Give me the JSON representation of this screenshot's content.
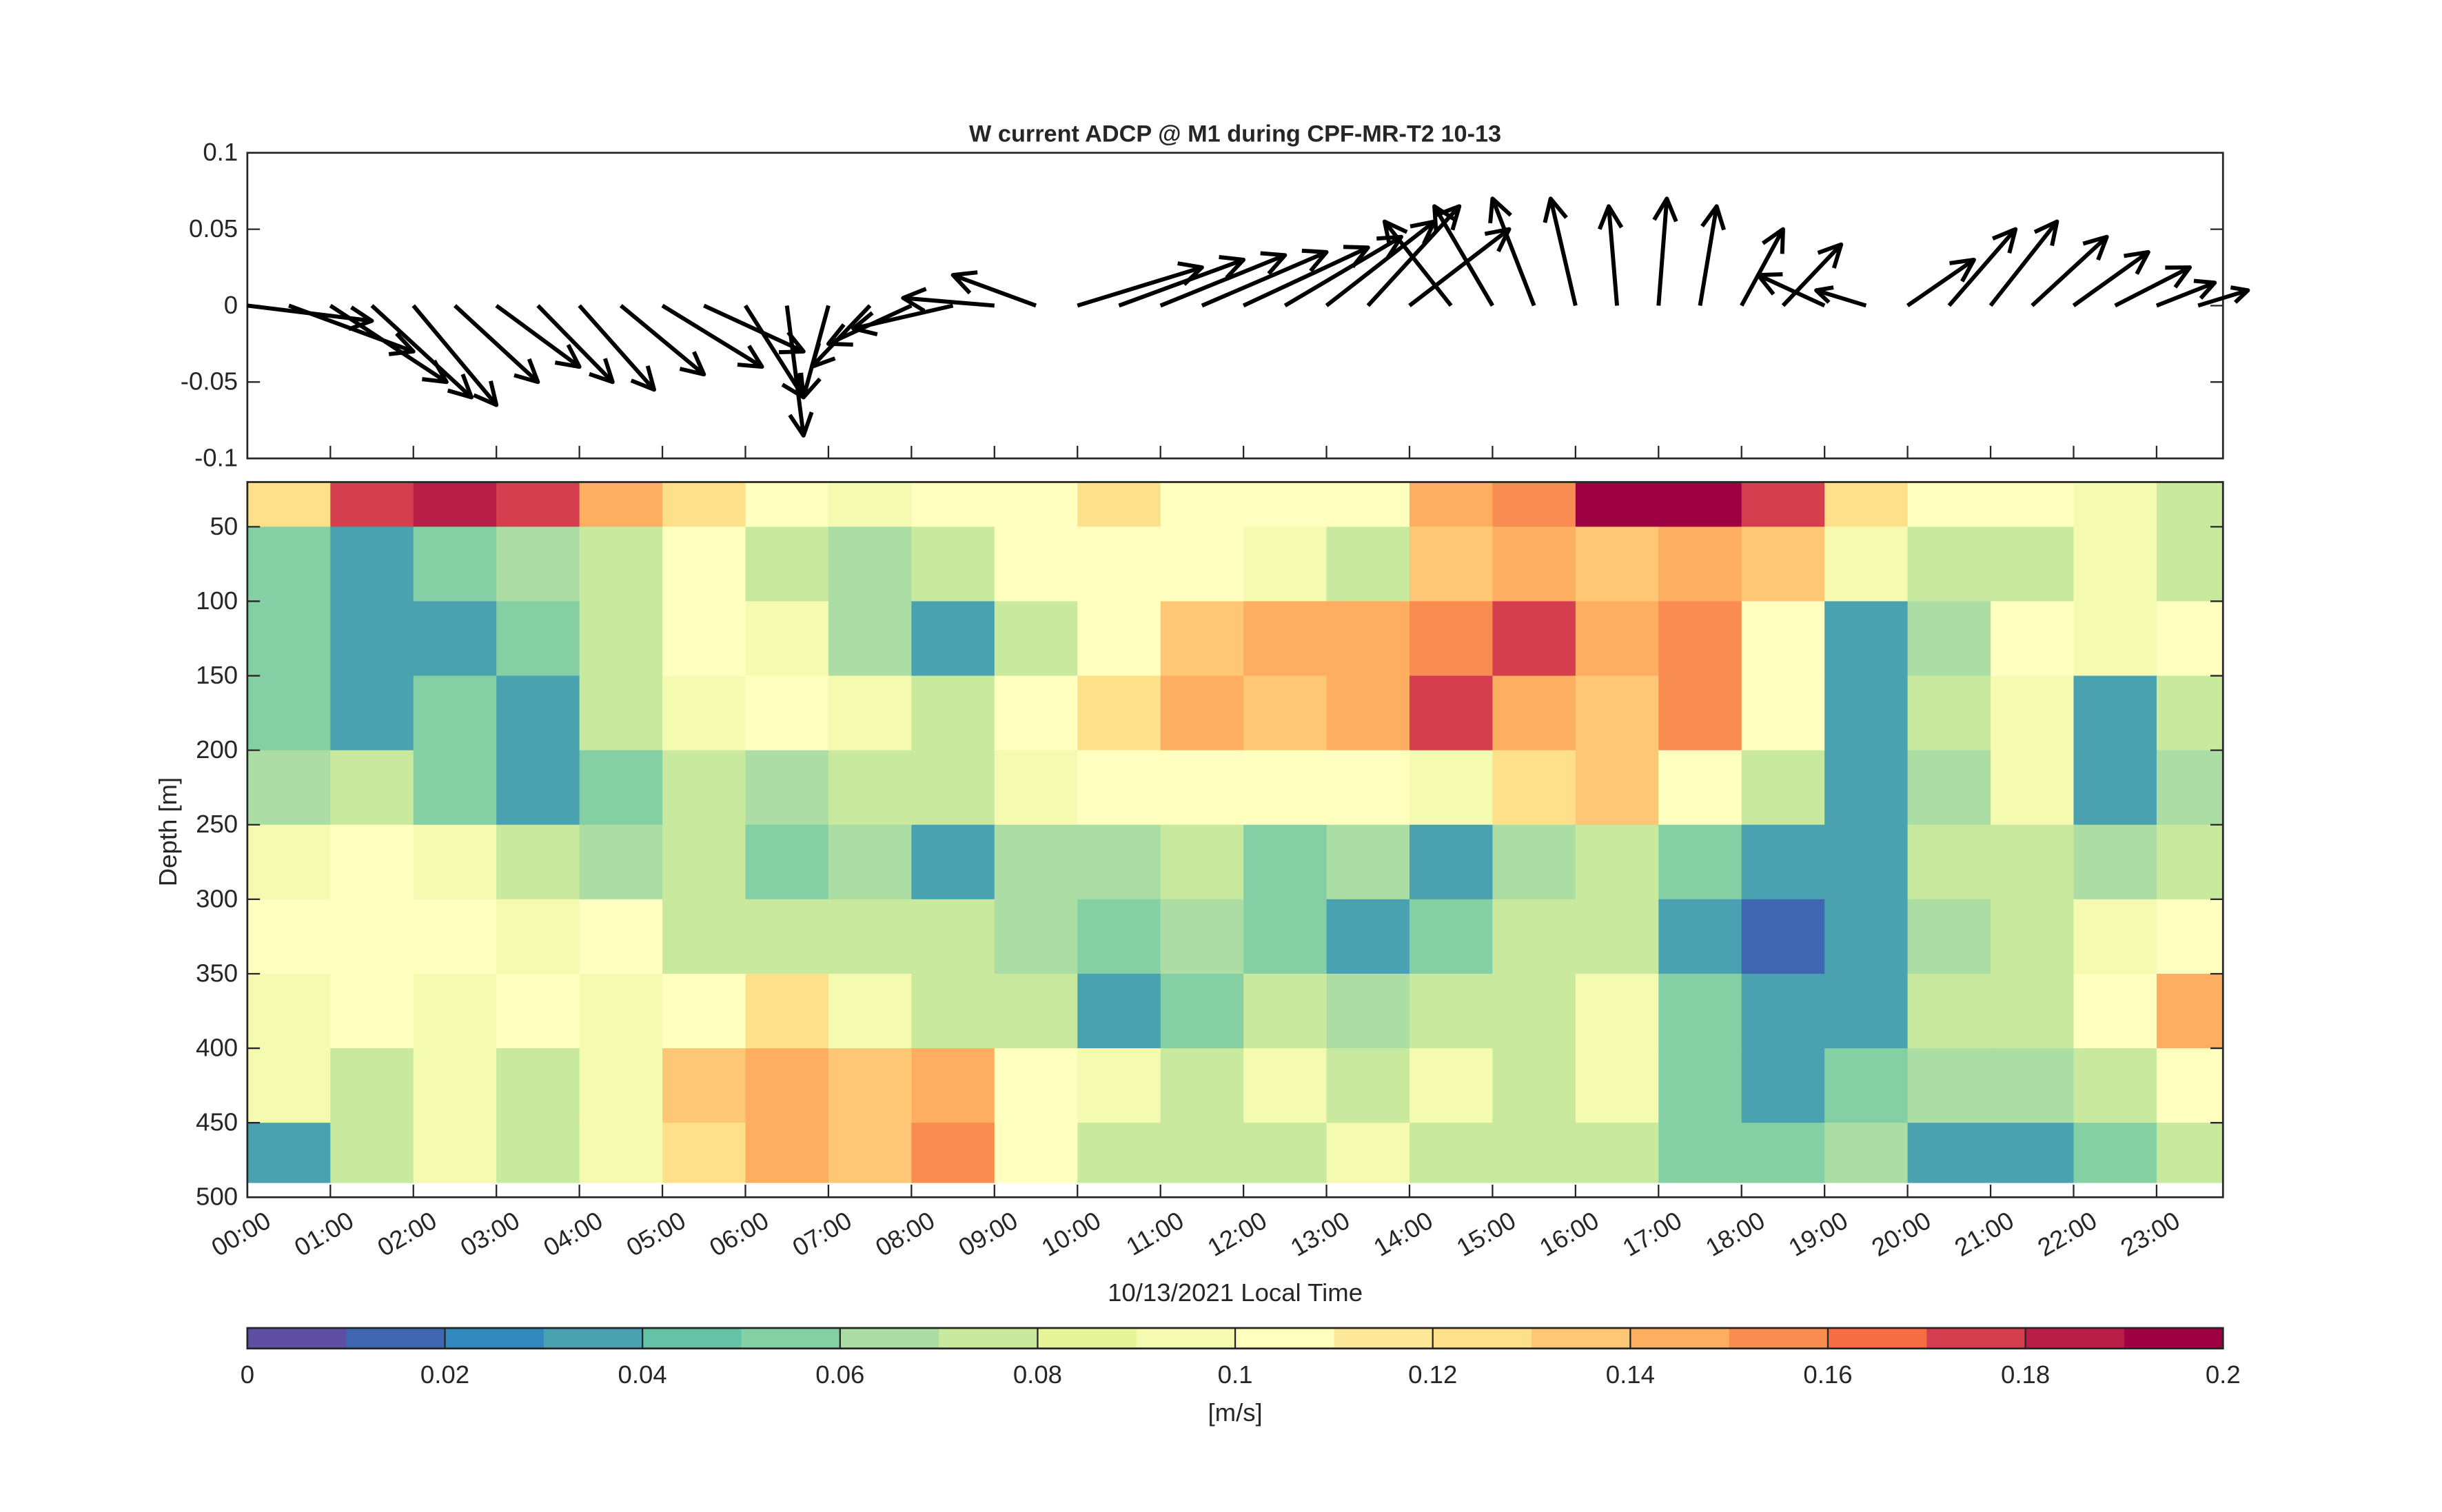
{
  "chart_data": [
    {
      "type": "quiver",
      "title": "W current ADCP @ M1 during CPF-MR-T2 10-13",
      "x": [
        0,
        0.5,
        1,
        1.5,
        2,
        2.5,
        3,
        3.5,
        4,
        4.5,
        5,
        5.5,
        6,
        6.5,
        7,
        7.5,
        8,
        8.5,
        9,
        9.5,
        10,
        10.5,
        11,
        11.5,
        12,
        12.5,
        13,
        13.5,
        14,
        14.5,
        15,
        15.5,
        16,
        16.5,
        17,
        17.5,
        18,
        18.5,
        19,
        19.5,
        20,
        20.5,
        21,
        21.5,
        22,
        22.5,
        23,
        23.5
      ],
      "u": [
        1.5,
        1.5,
        1.4,
        1.2,
        1.0,
        1.0,
        1.0,
        0.9,
        0.9,
        1.0,
        1.2,
        1.2,
        0.7,
        0.2,
        -0.3,
        -0.7,
        -1.0,
        -1.2,
        -1.1,
        -1.0,
        1.5,
        1.5,
        1.5,
        1.5,
        1.5,
        1.4,
        1.3,
        1.1,
        1.2,
        -0.8,
        -0.7,
        -0.5,
        -0.3,
        -0.1,
        0.1,
        0.2,
        0.5,
        0.7,
        -0.8,
        -0.6,
        0.8,
        0.8,
        0.8,
        0.9,
        0.9,
        0.9,
        0.7,
        0.6
      ],
      "v": [
        -0.01,
        -0.03,
        -0.05,
        -0.06,
        -0.065,
        -0.05,
        -0.04,
        -0.05,
        -0.055,
        -0.045,
        -0.04,
        -0.03,
        -0.06,
        -0.085,
        -0.06,
        -0.04,
        -0.025,
        -0.015,
        0.005,
        0.02,
        0.025,
        0.03,
        0.033,
        0.035,
        0.038,
        0.045,
        0.055,
        0.065,
        0.05,
        0.055,
        0.065,
        0.07,
        0.07,
        0.065,
        0.07,
        0.065,
        0.05,
        0.04,
        0.02,
        0.01,
        0.03,
        0.05,
        0.055,
        0.045,
        0.035,
        0.025,
        0.015,
        0.01
      ],
      "color": "#000000",
      "xlim": [
        0,
        23.8
      ],
      "ylim": [
        -0.1,
        0.1
      ],
      "yticks": [
        -0.1,
        -0.05,
        0,
        0.05,
        0.1
      ]
    },
    {
      "type": "heatmap",
      "xlabel": "10/13/2021 Local Time",
      "ylabel": "Depth [m]",
      "x_edges": [
        0,
        1,
        2,
        3,
        4,
        5,
        6,
        7,
        8,
        9,
        10,
        11,
        12,
        13,
        14,
        15,
        16,
        17,
        18,
        19,
        20,
        21,
        22,
        23,
        23.8
      ],
      "depth_edges": [
        20,
        50,
        100,
        150,
        200,
        250,
        300,
        350,
        400,
        450,
        490
      ],
      "values": [
        [
          0.12,
          0.17,
          0.18,
          0.17,
          0.14,
          0.12,
          0.1,
          0.09,
          0.1,
          0.11,
          0.12,
          0.11,
          0.1,
          0.11,
          0.14,
          0.16,
          0.19,
          0.2,
          0.17,
          0.12,
          0.1,
          0.1,
          0.09,
          0.08
        ],
        [
          0.05,
          0.04,
          0.05,
          0.06,
          0.08,
          0.1,
          0.08,
          0.06,
          0.07,
          0.1,
          0.11,
          0.1,
          0.09,
          0.08,
          0.13,
          0.14,
          0.13,
          0.15,
          0.13,
          0.09,
          0.07,
          0.08,
          0.09,
          0.07
        ],
        [
          0.05,
          0.03,
          0.03,
          0.05,
          0.07,
          0.1,
          0.09,
          0.06,
          0.04,
          0.08,
          0.11,
          0.13,
          0.14,
          0.15,
          0.16,
          0.17,
          0.15,
          0.16,
          0.1,
          0.04,
          0.06,
          0.11,
          0.09,
          0.1
        ],
        [
          0.05,
          0.04,
          0.05,
          0.04,
          0.07,
          0.09,
          0.1,
          0.09,
          0.08,
          0.1,
          0.12,
          0.14,
          0.13,
          0.15,
          0.17,
          0.14,
          0.13,
          0.16,
          0.11,
          0.04,
          0.07,
          0.09,
          0.04,
          0.07
        ],
        [
          0.06,
          0.07,
          0.05,
          0.03,
          0.05,
          0.07,
          0.06,
          0.07,
          0.08,
          0.09,
          0.1,
          0.1,
          0.11,
          0.1,
          0.09,
          0.12,
          0.13,
          0.1,
          0.07,
          0.04,
          0.06,
          0.09,
          0.03,
          0.06
        ],
        [
          0.09,
          0.1,
          0.09,
          0.08,
          0.06,
          0.07,
          0.05,
          0.06,
          0.04,
          0.06,
          0.06,
          0.07,
          0.05,
          0.06,
          0.04,
          0.06,
          0.08,
          0.05,
          0.04,
          0.03,
          0.07,
          0.07,
          0.06,
          0.07
        ],
        [
          0.1,
          0.11,
          0.1,
          0.09,
          0.1,
          0.08,
          0.08,
          0.07,
          0.08,
          0.06,
          0.05,
          0.06,
          0.05,
          0.04,
          0.05,
          0.07,
          0.08,
          0.04,
          0.02,
          0.03,
          0.06,
          0.08,
          0.09,
          0.1
        ],
        [
          0.09,
          0.1,
          0.09,
          0.1,
          0.09,
          0.1,
          0.12,
          0.09,
          0.08,
          0.07,
          0.03,
          0.05,
          0.07,
          0.06,
          0.08,
          0.08,
          0.09,
          0.05,
          0.03,
          0.03,
          0.07,
          0.08,
          0.11,
          0.15
        ],
        [
          0.09,
          0.08,
          0.09,
          0.08,
          0.09,
          0.13,
          0.14,
          0.13,
          0.15,
          0.1,
          0.09,
          0.08,
          0.09,
          0.08,
          0.09,
          0.07,
          0.09,
          0.05,
          0.04,
          0.05,
          0.06,
          0.06,
          0.08,
          0.1
        ],
        [
          0.03,
          0.08,
          0.09,
          0.08,
          0.09,
          0.12,
          0.14,
          0.13,
          0.16,
          0.1,
          0.08,
          0.07,
          0.08,
          0.09,
          0.07,
          0.08,
          0.08,
          0.05,
          0.05,
          0.06,
          0.04,
          0.03,
          0.05,
          0.08
        ]
      ],
      "xlim": [
        0,
        23.8
      ],
      "ylim": [
        20,
        500
      ],
      "yticks": [
        50,
        100,
        150,
        200,
        250,
        300,
        350,
        400,
        450,
        500
      ],
      "xticks": [
        {
          "value": 0,
          "label": "00:00"
        },
        {
          "value": 1,
          "label": "01:00"
        },
        {
          "value": 2,
          "label": "02:00"
        },
        {
          "value": 3,
          "label": "03:00"
        },
        {
          "value": 4,
          "label": "04:00"
        },
        {
          "value": 5,
          "label": "05:00"
        },
        {
          "value": 6,
          "label": "06:00"
        },
        {
          "value": 7,
          "label": "07:00"
        },
        {
          "value": 8,
          "label": "08:00"
        },
        {
          "value": 9,
          "label": "09:00"
        },
        {
          "value": 10,
          "label": "10:00"
        },
        {
          "value": 11,
          "label": "11:00"
        },
        {
          "value": 12,
          "label": "12:00"
        },
        {
          "value": 13,
          "label": "13:00"
        },
        {
          "value": 14,
          "label": "14:00"
        },
        {
          "value": 15,
          "label": "15:00"
        },
        {
          "value": 16,
          "label": "16:00"
        },
        {
          "value": 17,
          "label": "17:00"
        },
        {
          "value": 18,
          "label": "18:00"
        },
        {
          "value": 19,
          "label": "19:00"
        },
        {
          "value": 20,
          "label": "20:00"
        },
        {
          "value": 21,
          "label": "21:00"
        },
        {
          "value": 22,
          "label": "22:00"
        },
        {
          "value": 23,
          "label": "23:00"
        }
      ],
      "colorbar": {
        "label": "[m/s]",
        "lim": [
          0,
          0.2
        ],
        "ticks": [
          0,
          0.02,
          0.04,
          0.06,
          0.08,
          0.1,
          0.12,
          0.14,
          0.16,
          0.18,
          0.2
        ],
        "colors": [
          "#5e4fa2",
          "#3f66b0",
          "#3288bd",
          "#4aa2b0",
          "#66c2a5",
          "#85cfa4",
          "#abdda4",
          "#c9e99e",
          "#e6f598",
          "#f4fab0",
          "#ffffbf",
          "#fee99a",
          "#fee08b",
          "#fdc776",
          "#fdae61",
          "#f88c51",
          "#f46d43",
          "#d53e4f",
          "#b81e48",
          "#9e0142"
        ]
      }
    }
  ]
}
